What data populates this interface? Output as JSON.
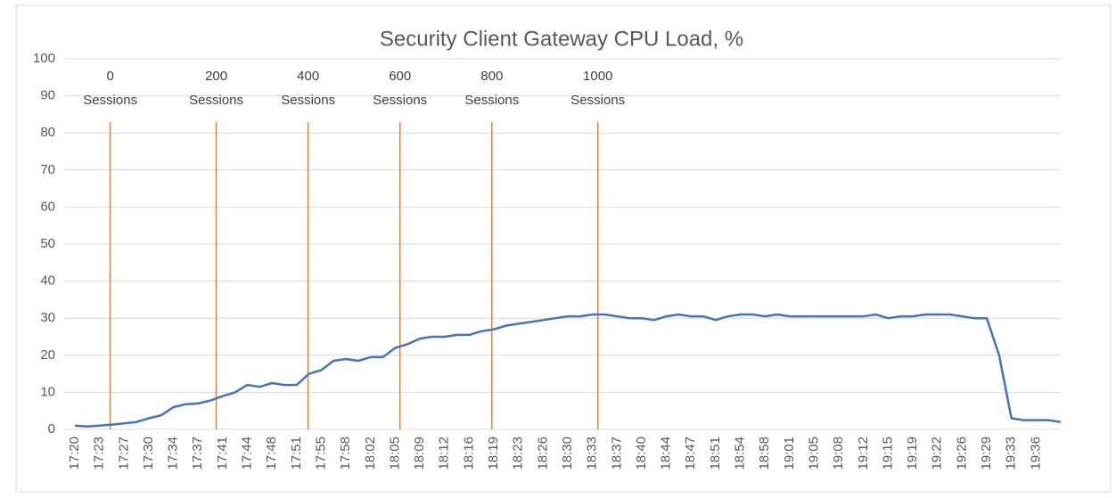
{
  "chart_data": {
    "type": "line",
    "title": "Security Client Gateway CPU Load, %",
    "categories": [
      "17:20",
      null,
      "17:23",
      null,
      "17:27",
      null,
      "17:30",
      null,
      "17:34",
      null,
      "17:37",
      null,
      "17:41",
      null,
      "17:44",
      null,
      "17:48",
      null,
      "17:51",
      null,
      "17:55",
      null,
      "17:58",
      null,
      "18:02",
      null,
      "18:05",
      null,
      "18:09",
      null,
      "18:12",
      null,
      "18:16",
      null,
      "18:19",
      null,
      "18:23",
      null,
      "18:26",
      null,
      "18:30",
      null,
      "18:33",
      null,
      "18:37",
      null,
      "18:40",
      null,
      "18:44",
      null,
      "18:47",
      null,
      "18:51",
      null,
      "18:54",
      null,
      "18:58",
      null,
      "19:01",
      null,
      "19:05",
      null,
      "19:08",
      null,
      "19:12",
      null,
      "19:15",
      null,
      "19:19",
      null,
      "19:22",
      null,
      "19:26",
      null,
      "19:29",
      null,
      "19:33",
      null,
      "19:36",
      null,
      null
    ],
    "series": [
      {
        "name": "CPU Load",
        "color": "#4472c4",
        "values": [
          1,
          0.8,
          1,
          1.3,
          1.6,
          2,
          3,
          3.8,
          6,
          6.8,
          7,
          7.8,
          9,
          10,
          12,
          11.5,
          12.5,
          12,
          12,
          15,
          16,
          18.5,
          19,
          18.5,
          19.5,
          19.5,
          22,
          23,
          24.5,
          25,
          25,
          25.5,
          25.5,
          26.5,
          27,
          28,
          28.5,
          29,
          29.5,
          30,
          30.5,
          30.5,
          31,
          31,
          30.5,
          30,
          30,
          29.5,
          30.5,
          31,
          30.5,
          30.5,
          29.5,
          30.5,
          31,
          31,
          30.5,
          31,
          30.5,
          30.5,
          30.5,
          30.5,
          30.5,
          30.5,
          30.5,
          31,
          30,
          30.5,
          30.5,
          31,
          31,
          31,
          30.5,
          30,
          30,
          20,
          3,
          2.5,
          2.5,
          2.5,
          2
        ]
      }
    ],
    "annotations": [
      {
        "x": "17:25",
        "lines": [
          "0",
          "Sessions"
        ]
      },
      {
        "x": "17:40",
        "lines": [
          "200",
          "Sessions"
        ]
      },
      {
        "x": "17:53",
        "lines": [
          "400",
          "Sessions"
        ]
      },
      {
        "x": "18:06",
        "lines": [
          "600",
          "Sessions"
        ]
      },
      {
        "x": "18:19",
        "lines": [
          "800",
          "Sessions"
        ]
      },
      {
        "x": "18:34",
        "lines": [
          "1000",
          "Sessions"
        ]
      }
    ],
    "annotation_color": "#ed7d31",
    "ylim": [
      0,
      100
    ],
    "yticks": [
      0,
      10,
      20,
      30,
      40,
      50,
      60,
      70,
      80,
      90,
      100
    ],
    "grid": true
  }
}
